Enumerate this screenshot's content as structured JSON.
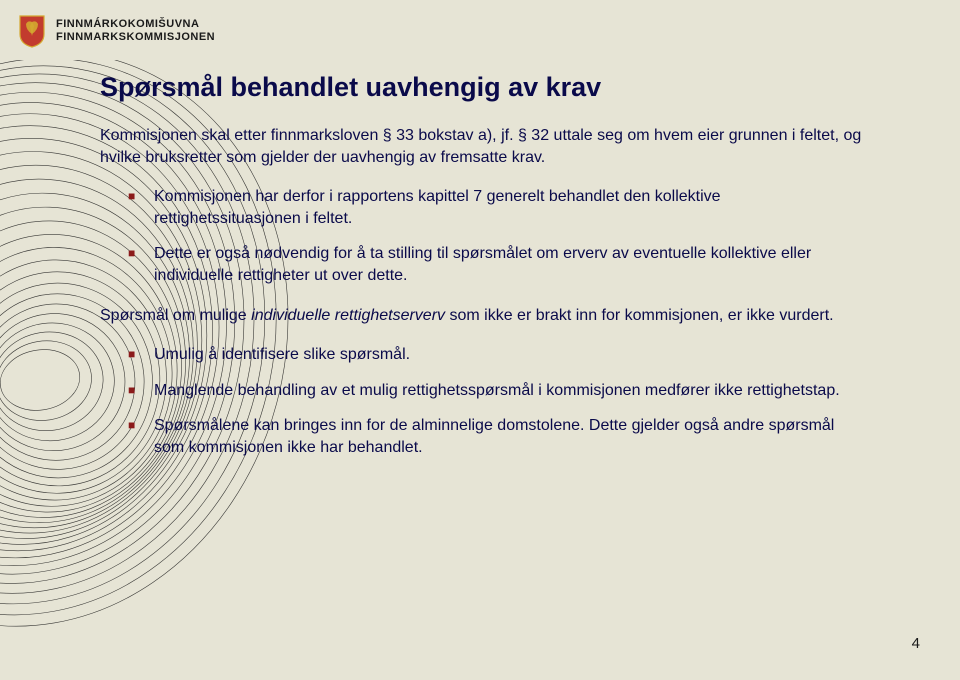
{
  "header": {
    "org_line1": "FINNMÁRKOKOMIŠUVNA",
    "org_line2": "FINNMARKSKOMMISJONEN",
    "crest": {
      "shield_fill": "#c23b2e",
      "shield_stroke": "#d4a830",
      "lion_fill": "#d4a830"
    }
  },
  "background_art": {
    "stroke": "#1a1a1a",
    "stroke_width": 0.6,
    "ellipse_count": 28
  },
  "page": {
    "background": "#e6e4d5",
    "text_color": "#0a0a4a",
    "bullet_color": "#8b1a1a",
    "number": "4"
  },
  "body": {
    "title": "Spørsmål behandlet uavhengig av krav",
    "intro": "Kommisjonen skal etter finnmarksloven § 33 bokstav a), jf. § 32 uttale seg om hvem eier grunnen i feltet, og hvilke bruksretter som gjelder der uavhengig av fremsatte krav.",
    "bullets_top": [
      "Kommisjonen har derfor i rapportens kapittel 7 generelt behandlet den kollektive rettighetssituasjonen i feltet.",
      "Dette er også nødvendig  for å ta stilling til spørsmålet om erverv av eventuelle kollektive eller individuelle rettigheter ut over dette."
    ],
    "mid_para_pre": "Spørsmål om mulige ",
    "mid_para_italic": "individuelle rettighetserverv",
    "mid_para_post": " som ikke er brakt inn for kommisjonen, er ikke vurdert.",
    "bullets_bottom": [
      "Umulig å identifisere slike spørsmål.",
      "Manglende behandling av et mulig rettighetsspørsmål i kommisjonen medfører ikke rettighetstap.",
      "Spørsmålene kan bringes inn for de alminnelige domstolene. Dette gjelder også andre spørsmål som kommisjonen ikke har behandlet."
    ]
  }
}
